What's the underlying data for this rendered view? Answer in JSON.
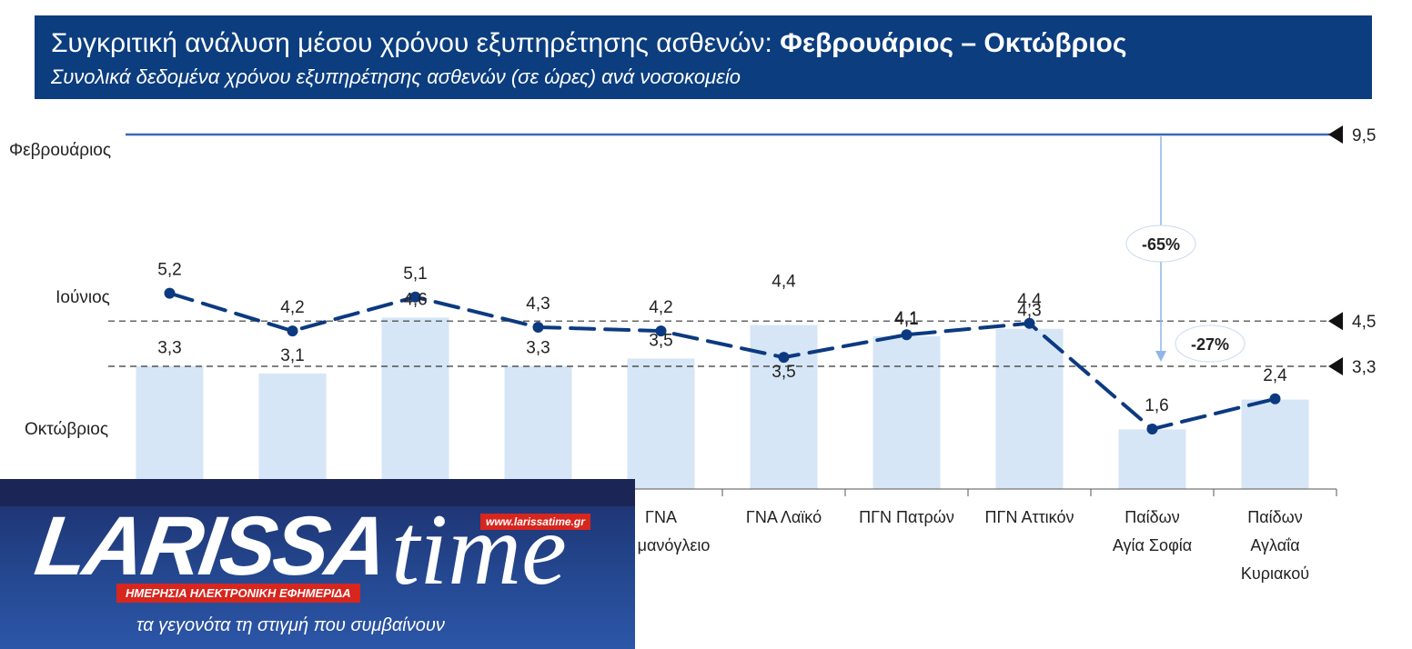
{
  "header": {
    "title_prefix": "Συγκριτική ανάλυση μέσου χρόνου εξυπηρέτησης ασθενών:",
    "title_bold": "Φεβρουάριος – Οκτώβριος",
    "subtitle": "Συνολικά δεδομένα χρόνου εξυπηρέτησης ασθενών (σε ώρες) ανά νοσοκομείο"
  },
  "chart_data": {
    "type": "bar",
    "title": "Συγκριτική ανάλυση μέσου χρόνου εξυπηρέτησης ασθενών: Φεβρουάριος – Οκτώβριος",
    "subtitle": "Συνολικά δεδομένα χρόνου εξυπηρέτησης ασθενών (σε ώρες) ανά νοσοκομείο",
    "categories": [
      "",
      "",
      "",
      "",
      "ΓΝΑ\nΕυαγγελισμός\nΟφθαλμιατρείο\nΜανόγλειο",
      "ΓΝΑ Λαϊκό",
      "ΠΓΝ Πατρών",
      "ΠΓΝ Αττικόν",
      "Παίδων\nΑγία Σοφία",
      "Παίδων\nΑγλαΐα\nΚυριακού"
    ],
    "category_labels_visible": [
      [],
      [],
      [],
      [],
      [
        "ΓΝΑ",
        "μανόγλειο"
      ],
      [
        "ΓΝΑ Λαϊκό"
      ],
      [
        "ΠΓΝ Πατρών"
      ],
      [
        "ΠΓΝ Αττικόν"
      ],
      [
        "Παίδων",
        "Αγία Σοφία"
      ],
      [
        "Παίδων",
        "Αγλαΐα",
        "Κυριακού"
      ]
    ],
    "series": [
      {
        "name": "Οκτώβριος",
        "kind": "bar",
        "values": [
          3.3,
          3.1,
          4.6,
          3.3,
          3.5,
          4.4,
          4.1,
          4.3,
          1.6,
          2.4
        ],
        "labels": [
          "3,3",
          "3,1",
          "4,6",
          "3,3",
          "3,5",
          "4,4",
          "4,1",
          "4,3",
          "",
          ""
        ]
      },
      {
        "name": "Ιούνιος",
        "kind": "line",
        "values": [
          5.2,
          4.2,
          5.1,
          4.3,
          4.2,
          3.5,
          4.1,
          4.4,
          1.6,
          2.4
        ],
        "labels": [
          "5,2",
          "4,2",
          "5,1",
          "4,3",
          "4,2",
          "3,5",
          "",
          "4,4",
          "1,6",
          "2,4"
        ]
      }
    ],
    "reference_lines": [
      {
        "name": "Φεβρουάριος",
        "value": 9.5,
        "label": "9,5",
        "style": "solid"
      },
      {
        "name": "Ιούνιος",
        "value": 4.5,
        "label": "4,5",
        "style": "dashed"
      },
      {
        "name": "Οκτώβριος",
        "value": 3.3,
        "label": "3,3",
        "style": "dashed"
      }
    ],
    "annotations": [
      "-65%",
      "-27%"
    ],
    "colors": {
      "bar": "#d6e6f6",
      "line": "#0c3a80",
      "ref_solid": "#3a68b8",
      "ref_dashed": "#333333"
    }
  },
  "watermark": {
    "brand": "LARISSA",
    "brand_tail": "time",
    "url": "www.larissatime.gr",
    "band": "ΗΜΕΡΗΣΙΑ ΗΛΕΚΤΡΟΝΙΚΗ ΕΦΗΜΕΡΙΔΑ",
    "slogan": "τα γεγονότα τη στιγμή που συμβαίνουν"
  }
}
